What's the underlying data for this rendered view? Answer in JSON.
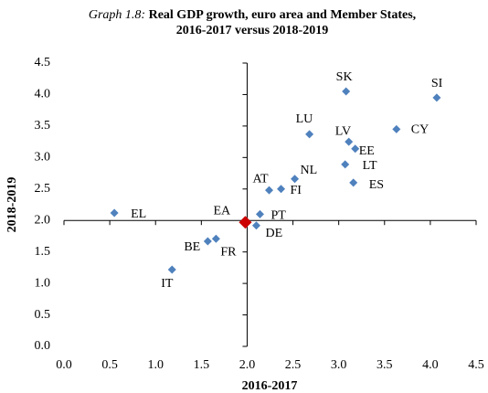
{
  "chart_data": {
    "type": "scatter",
    "title_prefix": "Graph 1.8:",
    "title_lines": [
      "Real GDP growth, euro area and Member States,",
      "2016-2017 versus 2018-2019"
    ],
    "x_label": "2016-2017",
    "y_label": "2018-2019",
    "xlim": [
      0,
      4.5
    ],
    "ylim": [
      0,
      4.5
    ],
    "xticks": [
      {
        "value": 0,
        "label": "0.0"
      },
      {
        "value": 0.5,
        "label": "0.5"
      },
      {
        "value": 1,
        "label": "1.0"
      },
      {
        "value": 1.5,
        "label": "1.5"
      },
      {
        "value": 2,
        "label": "2.0"
      },
      {
        "value": 2.5,
        "label": "2.5"
      },
      {
        "value": 3,
        "label": "3.0"
      },
      {
        "value": 3.5,
        "label": "3.5"
      },
      {
        "value": 4,
        "label": "4.0"
      },
      {
        "value": 4.5,
        "label": "4.5"
      }
    ],
    "yticks": [
      {
        "value": 0,
        "label": "0.0"
      },
      {
        "value": 0.5,
        "label": "0.5"
      },
      {
        "value": 1,
        "label": "1.0"
      },
      {
        "value": 1.5,
        "label": "1.5"
      },
      {
        "value": 2,
        "label": "2.0"
      },
      {
        "value": 2.5,
        "label": "2.5"
      },
      {
        "value": 3,
        "label": "3.0"
      },
      {
        "value": 3.5,
        "label": "3.5"
      },
      {
        "value": 4,
        "label": "4.0"
      },
      {
        "value": 4.5,
        "label": "4.5"
      }
    ],
    "x_axis_at": 2,
    "y_axis_at": 2,
    "points": [
      {
        "label": "EL",
        "x": 0.55,
        "y": 2.12,
        "color": "#4f81bd"
      },
      {
        "label": "IT",
        "x": 1.18,
        "y": 1.22,
        "color": "#4f81bd"
      },
      {
        "label": "BE",
        "x": 1.57,
        "y": 1.67,
        "color": "#4f81bd"
      },
      {
        "label": "FR",
        "x": 1.66,
        "y": 1.71,
        "color": "#4f81bd"
      },
      {
        "label": "EA",
        "x": 1.98,
        "y": 1.97,
        "color": "#cc0000"
      },
      {
        "label": "DE",
        "x": 2.1,
        "y": 1.92,
        "color": "#4f81bd"
      },
      {
        "label": "PT",
        "x": 2.14,
        "y": 2.1,
        "color": "#4f81bd"
      },
      {
        "label": "AT",
        "x": 2.24,
        "y": 2.48,
        "color": "#4f81bd"
      },
      {
        "label": "FI",
        "x": 2.37,
        "y": 2.5,
        "color": "#4f81bd"
      },
      {
        "label": "NL",
        "x": 2.52,
        "y": 2.66,
        "color": "#4f81bd"
      },
      {
        "label": "LU",
        "x": 2.68,
        "y": 3.37,
        "color": "#4f81bd"
      },
      {
        "label": "LT",
        "x": 3.07,
        "y": 2.89,
        "color": "#4f81bd"
      },
      {
        "label": "ES",
        "x": 3.16,
        "y": 2.6,
        "color": "#4f81bd"
      },
      {
        "label": "LV",
        "x": 3.11,
        "y": 3.25,
        "color": "#4f81bd"
      },
      {
        "label": "EE",
        "x": 3.18,
        "y": 3.14,
        "color": "#4f81bd"
      },
      {
        "label": "CY",
        "x": 3.63,
        "y": 3.45,
        "color": "#4f81bd"
      },
      {
        "label": "SK",
        "x": 3.08,
        "y": 4.05,
        "color": "#4f81bd"
      },
      {
        "label": "SI",
        "x": 4.07,
        "y": 3.95,
        "color": "#4f81bd"
      }
    ]
  }
}
